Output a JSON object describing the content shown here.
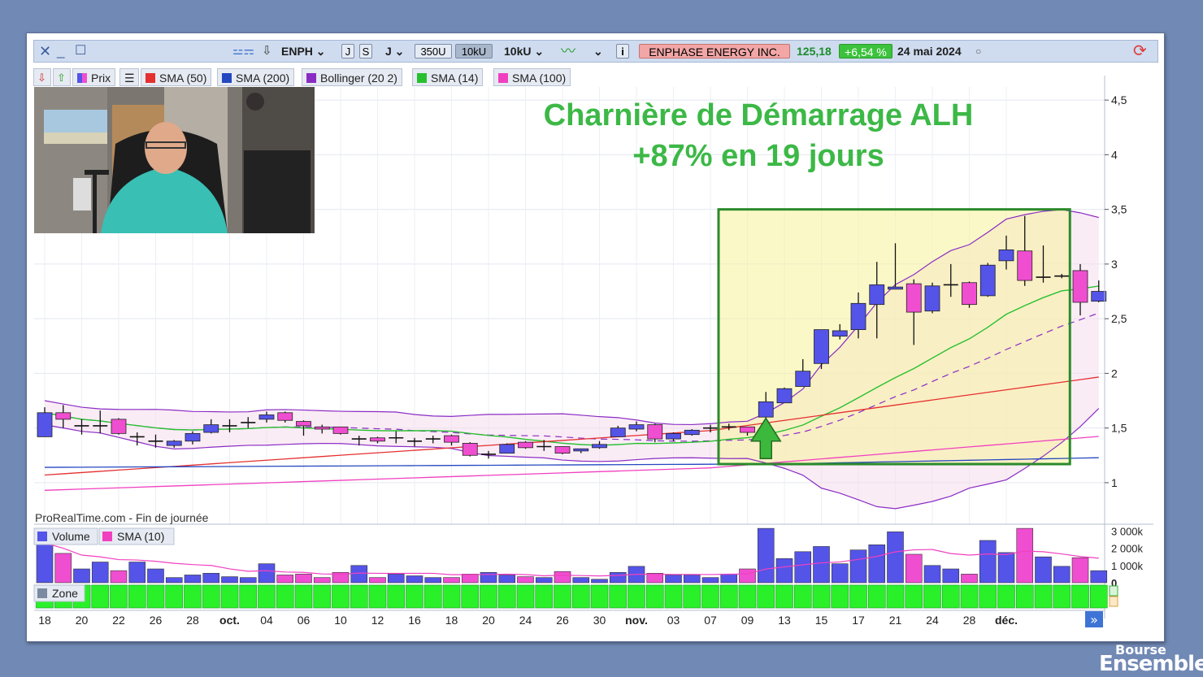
{
  "toolbar": {
    "ticker": "ENPH",
    "period_day": "J",
    "period_week": "S",
    "interval": "J",
    "units_a": "350U",
    "units_b": "10kU",
    "units_c": "10kU",
    "company": "ENPHASE ENERGY INC.",
    "price": "125,18",
    "change": "+6,54 %",
    "date": "24 mai 2024"
  },
  "legend": {
    "price": "Prix",
    "sma50": "SMA (50)",
    "sma200": "SMA (200)",
    "bollinger": "Bollinger (20 2)",
    "sma14": "SMA (14)",
    "sma100": "SMA (100)"
  },
  "volume_legend": {
    "volume": "Volume",
    "sma10": "SMA (10)"
  },
  "zone_label": "Zone",
  "annotation": {
    "title": "Charnière de Démarrage ALH",
    "subtitle": "+87% en 19 jours"
  },
  "source": "ProRealTime.com - Fin de journée",
  "brand": {
    "top": "Bourse",
    "bottom": "Ensemble"
  },
  "colors": {
    "up": "#5454e8",
    "down": "#f04ed0",
    "sma50": "#e53030",
    "sma200": "#2448c0",
    "bollinger": "#8a2cc4",
    "sma14": "#28c030",
    "sma100": "#f040c0",
    "annotation": "#3cb846",
    "zone": "#2af02a"
  },
  "chart_data": {
    "type": "candlestick",
    "y_ticks": [
      "4,5",
      "4",
      "3,5",
      "3",
      "2,5",
      "2",
      "1,5",
      "1"
    ],
    "y_tick_values": [
      4.5,
      4,
      3.5,
      3,
      2.5,
      2,
      1.5,
      1
    ],
    "ylim": [
      0.62,
      4.62
    ],
    "x_labels": [
      "18",
      "20",
      "22",
      "26",
      "28",
      "oct.",
      "04",
      "06",
      "10",
      "12",
      "16",
      "18",
      "20",
      "24",
      "26",
      "30",
      "nov.",
      "03",
      "07",
      "09",
      "13",
      "15",
      "17",
      "21",
      "24",
      "28",
      "déc."
    ],
    "x_label_index": [
      0,
      2,
      4,
      6,
      8,
      10,
      12,
      14,
      16,
      18,
      20,
      22,
      24,
      26,
      28,
      30,
      32,
      34,
      36,
      38,
      40,
      42,
      44,
      46,
      48,
      50,
      52
    ],
    "candles": [
      [
        1.42,
        1.64,
        1.42,
        1.69
      ],
      [
        1.64,
        1.58,
        1.5,
        1.71
      ],
      [
        1.52,
        1.52,
        1.44,
        1.58
      ],
      [
        1.52,
        1.52,
        1.45,
        1.66
      ],
      [
        1.58,
        1.45,
        1.44,
        1.59
      ],
      [
        1.42,
        1.42,
        1.34,
        1.46
      ],
      [
        1.38,
        1.38,
        1.32,
        1.44
      ],
      [
        1.34,
        1.38,
        1.32,
        1.39
      ],
      [
        1.38,
        1.45,
        1.35,
        1.47
      ],
      [
        1.46,
        1.53,
        1.45,
        1.58
      ],
      [
        1.52,
        1.52,
        1.46,
        1.58
      ],
      [
        1.55,
        1.55,
        1.5,
        1.6
      ],
      [
        1.58,
        1.62,
        1.55,
        1.65
      ],
      [
        1.64,
        1.57,
        1.55,
        1.65
      ],
      [
        1.56,
        1.52,
        1.43,
        1.57
      ],
      [
        1.51,
        1.49,
        1.45,
        1.53
      ],
      [
        1.51,
        1.45,
        1.44,
        1.51
      ],
      [
        1.4,
        1.4,
        1.34,
        1.43
      ],
      [
        1.41,
        1.38,
        1.36,
        1.42
      ],
      [
        1.41,
        1.41,
        1.36,
        1.47
      ],
      [
        1.38,
        1.38,
        1.33,
        1.41
      ],
      [
        1.4,
        1.4,
        1.36,
        1.43
      ],
      [
        1.43,
        1.37,
        1.34,
        1.44
      ],
      [
        1.36,
        1.25,
        1.24,
        1.37
      ],
      [
        1.26,
        1.26,
        1.22,
        1.29
      ],
      [
        1.27,
        1.35,
        1.27,
        1.36
      ],
      [
        1.37,
        1.32,
        1.31,
        1.38
      ],
      [
        1.33,
        1.33,
        1.29,
        1.39
      ],
      [
        1.33,
        1.27,
        1.26,
        1.33
      ],
      [
        1.29,
        1.31,
        1.27,
        1.31
      ],
      [
        1.32,
        1.35,
        1.31,
        1.38
      ],
      [
        1.42,
        1.5,
        1.42,
        1.52
      ],
      [
        1.49,
        1.53,
        1.47,
        1.56
      ],
      [
        1.53,
        1.4,
        1.37,
        1.54
      ],
      [
        1.4,
        1.45,
        1.38,
        1.46
      ],
      [
        1.44,
        1.48,
        1.43,
        1.49
      ],
      [
        1.5,
        1.5,
        1.46,
        1.53
      ],
      [
        1.51,
        1.51,
        1.48,
        1.54
      ],
      [
        1.51,
        1.46,
        1.43,
        1.51
      ],
      [
        1.6,
        1.74,
        1.57,
        1.83
      ],
      [
        1.73,
        1.86,
        1.73,
        1.87
      ],
      [
        1.88,
        2.02,
        1.88,
        2.13
      ],
      [
        2.09,
        2.4,
        2.04,
        2.4
      ],
      [
        2.34,
        2.39,
        2.31,
        2.45
      ],
      [
        2.4,
        2.64,
        2.32,
        2.74
      ],
      [
        2.63,
        2.81,
        2.32,
        3.02
      ],
      [
        2.77,
        2.79,
        2.78,
        3.19
      ],
      [
        2.82,
        2.56,
        2.26,
        2.86
      ],
      [
        2.57,
        2.8,
        2.55,
        2.83
      ],
      [
        2.81,
        2.81,
        2.7,
        3.0
      ],
      [
        2.83,
        2.63,
        2.6,
        2.84
      ],
      [
        2.71,
        2.99,
        2.7,
        3.01
      ],
      [
        3.03,
        3.13,
        2.95,
        3.26
      ],
      [
        3.12,
        2.85,
        2.8,
        3.44
      ],
      [
        2.88,
        2.88,
        2.83,
        3.17
      ],
      [
        2.89,
        2.89,
        2.87,
        2.91
      ],
      [
        2.94,
        2.65,
        2.53,
        3.0
      ],
      [
        2.66,
        2.75,
        2.65,
        2.85
      ]
    ],
    "volume": {
      "ylim": [
        0,
        3250000
      ],
      "y_ticks": [
        "3 000k",
        "2 000k",
        "1 000k",
        "0"
      ],
      "y_tick_values": [
        3000000,
        2000000,
        1000000,
        0
      ],
      "values": [
        2300000,
        1700000,
        800000,
        1200000,
        700000,
        1200000,
        800000,
        300000,
        450000,
        550000,
        350000,
        300000,
        1100000,
        450000,
        500000,
        300000,
        600000,
        1000000,
        300000,
        500000,
        400000,
        300000,
        300000,
        500000,
        600000,
        450000,
        350000,
        300000,
        650000,
        300000,
        200000,
        600000,
        950000,
        550000,
        450000,
        450000,
        300000,
        500000,
        800000,
        3150000,
        1400000,
        1800000,
        2100000,
        1100000,
        1900000,
        2200000,
        2950000,
        1650000,
        1000000,
        800000,
        500000,
        2450000,
        1750000,
        3150000,
        1500000,
        950000,
        1450000,
        700000
      ]
    },
    "title": "",
    "xlabel": "",
    "ylabel": ""
  }
}
